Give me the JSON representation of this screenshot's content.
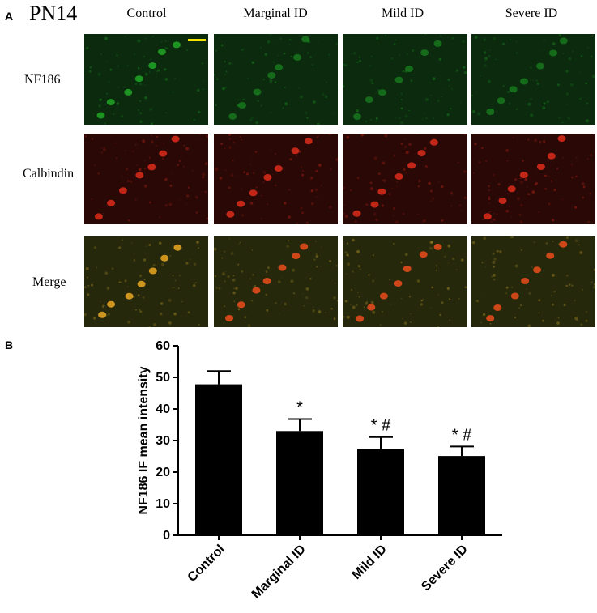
{
  "panel_a": {
    "letter": "A",
    "timepoint": "PN14",
    "columns": [
      "Control",
      "Marginal ID",
      "Mild ID",
      "Severe ID"
    ],
    "rows": [
      {
        "label": "NF186",
        "color": "#1fa024"
      },
      {
        "label": "Calbindin",
        "color": "#d22a1a"
      },
      {
        "label": "Merge",
        "color": "#c9a62a"
      }
    ]
  },
  "panel_b": {
    "letter": "B"
  },
  "chart_data": {
    "type": "bar",
    "categories": [
      "Control",
      "Marginal ID",
      "Mild ID",
      "Severe ID"
    ],
    "values": [
      47.8,
      33.0,
      27.3,
      25.1
    ],
    "errors": [
      4.2,
      3.8,
      3.8,
      3.0
    ],
    "annotations": [
      "",
      "*",
      "* #",
      "* #"
    ],
    "title": "",
    "xlabel": "",
    "ylabel": "NF186 IF mean intensity",
    "ylim": [
      0,
      60
    ],
    "yticks": [
      0,
      10,
      20,
      30,
      40,
      50,
      60
    ],
    "bar_color": "#000000",
    "grid": false,
    "legend": "none"
  }
}
